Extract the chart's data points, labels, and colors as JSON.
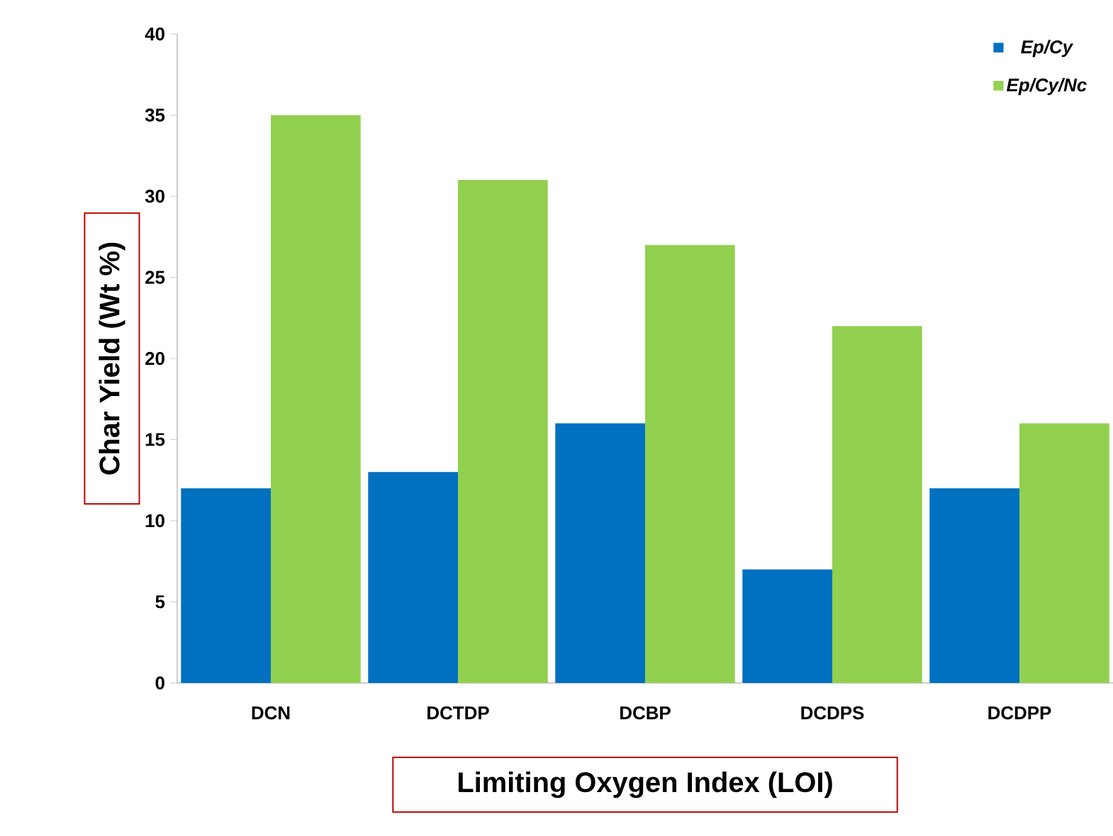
{
  "chart_data": {
    "type": "bar",
    "xlabel": "Limiting Oxygen Index (LOI)",
    "ylabel": "Char Yield (Wt %)",
    "categories": [
      "DCN",
      "DCTDP",
      "DCBP",
      "DCDPS",
      "DCDPP"
    ],
    "series": [
      {
        "name": "*Ep/Cy*",
        "color": "#0070c0",
        "values": [
          12,
          13,
          16,
          7,
          12
        ]
      },
      {
        "name": "*Ep/Cy/Nc*",
        "color": "#92d050",
        "values": [
          35,
          31,
          27,
          22,
          16
        ]
      }
    ],
    "ylim": [
      0,
      40
    ],
    "yticks": [
      0,
      5,
      10,
      15,
      20,
      25,
      30,
      35,
      40
    ],
    "legend": "top right",
    "grid": false
  }
}
